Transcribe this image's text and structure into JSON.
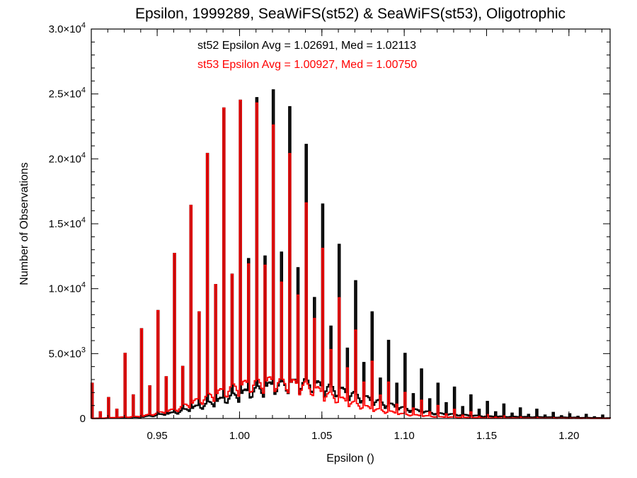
{
  "chart_data": {
    "type": "histogram",
    "title": "Epsilon, 1999289, SeaWiFS(st52) & SeaWiFS(st53), Oligotrophic",
    "xlabel": "Epsilon ()",
    "ylabel": "Number of Observations",
    "xlim": [
      0.91,
      1.225
    ],
    "ylim": [
      0,
      30000
    ],
    "x_ticks": [
      {
        "value": 0.95,
        "label": "0.95"
      },
      {
        "value": 1.0,
        "label": "1.00"
      },
      {
        "value": 1.05,
        "label": "1.05"
      },
      {
        "value": 1.1,
        "label": "1.10"
      },
      {
        "value": 1.15,
        "label": "1.15"
      },
      {
        "value": 1.2,
        "label": "1.20"
      }
    ],
    "y_ticks": [
      {
        "value": 0,
        "mant": "0",
        "exp": ""
      },
      {
        "value": 5000,
        "mant": "5.0×10",
        "exp": "3"
      },
      {
        "value": 10000,
        "mant": "1.0×10",
        "exp": "4"
      },
      {
        "value": 15000,
        "mant": "1.5×10",
        "exp": "4"
      },
      {
        "value": 20000,
        "mant": "2.0×10",
        "exp": "4"
      },
      {
        "value": 25000,
        "mant": "2.5×10",
        "exp": "4"
      },
      {
        "value": 30000,
        "mant": "3.0×10",
        "exp": "4"
      }
    ],
    "annotations": [
      {
        "text": "st52 Epsilon Avg = 1.02691, Med = 1.02113",
        "color": "#000000"
      },
      {
        "text": "st53 Epsilon Avg = 1.00927, Med = 1.00750",
        "color": "#ff0000"
      }
    ],
    "bin_width": 0.001,
    "series": [
      {
        "id": "st52",
        "color": "#000000",
        "spikes": [
          [
            0.91,
            2700
          ],
          [
            0.915,
            500
          ],
          [
            0.92,
            1600
          ],
          [
            0.925,
            700
          ],
          [
            0.93,
            5000
          ],
          [
            0.935,
            1800
          ],
          [
            0.94,
            6900
          ],
          [
            0.945,
            2500
          ],
          [
            0.95,
            8300
          ],
          [
            0.955,
            3200
          ],
          [
            0.96,
            12700
          ],
          [
            0.965,
            4000
          ],
          [
            0.97,
            16400
          ],
          [
            0.975,
            8200
          ],
          [
            0.98,
            20400
          ],
          [
            0.985,
            10300
          ],
          [
            0.99,
            23900
          ],
          [
            0.995,
            11100
          ],
          [
            1.0,
            24500
          ],
          [
            1.005,
            12300
          ],
          [
            1.01,
            24700
          ],
          [
            1.015,
            12500
          ],
          [
            1.02,
            25300
          ],
          [
            1.025,
            12800
          ],
          [
            1.03,
            24000
          ],
          [
            1.035,
            11600
          ],
          [
            1.04,
            21100
          ],
          [
            1.045,
            9300
          ],
          [
            1.05,
            16500
          ],
          [
            1.055,
            7100
          ],
          [
            1.06,
            13400
          ],
          [
            1.065,
            5400
          ],
          [
            1.07,
            10600
          ],
          [
            1.075,
            4300
          ],
          [
            1.08,
            8200
          ],
          [
            1.085,
            3100
          ],
          [
            1.09,
            6000
          ],
          [
            1.095,
            2700
          ],
          [
            1.1,
            5000
          ],
          [
            1.105,
            1900
          ],
          [
            1.11,
            3800
          ],
          [
            1.115,
            1500
          ],
          [
            1.12,
            2700
          ],
          [
            1.125,
            1200
          ],
          [
            1.13,
            2400
          ],
          [
            1.135,
            900
          ],
          [
            1.14,
            1800
          ],
          [
            1.145,
            700
          ],
          [
            1.15,
            1300
          ],
          [
            1.155,
            500
          ],
          [
            1.16,
            1100
          ],
          [
            1.165,
            400
          ],
          [
            1.17,
            800
          ],
          [
            1.175,
            300
          ],
          [
            1.18,
            700
          ],
          [
            1.185,
            250
          ],
          [
            1.19,
            450
          ],
          [
            1.195,
            200
          ],
          [
            1.2,
            350
          ],
          [
            1.205,
            150
          ],
          [
            1.21,
            300
          ],
          [
            1.215,
            120
          ],
          [
            1.22,
            250
          ]
        ],
        "baseline": [
          [
            0.91,
            0
          ],
          [
            0.94,
            100
          ],
          [
            0.96,
            400
          ],
          [
            0.98,
            1000
          ],
          [
            1.0,
            1700
          ],
          [
            1.02,
            2300
          ],
          [
            1.04,
            2500
          ],
          [
            1.06,
            2000
          ],
          [
            1.08,
            1300
          ],
          [
            1.1,
            700
          ],
          [
            1.12,
            350
          ],
          [
            1.15,
            150
          ],
          [
            1.225,
            30
          ]
        ]
      },
      {
        "id": "st53",
        "color": "#ff0000",
        "spikes": [
          [
            0.91,
            2700
          ],
          [
            0.915,
            500
          ],
          [
            0.92,
            1600
          ],
          [
            0.925,
            700
          ],
          [
            0.93,
            5000
          ],
          [
            0.935,
            1800
          ],
          [
            0.94,
            6900
          ],
          [
            0.945,
            2500
          ],
          [
            0.95,
            8300
          ],
          [
            0.955,
            3200
          ],
          [
            0.96,
            12700
          ],
          [
            0.965,
            4000
          ],
          [
            0.97,
            16400
          ],
          [
            0.975,
            8200
          ],
          [
            0.98,
            20400
          ],
          [
            0.985,
            10300
          ],
          [
            0.99,
            23900
          ],
          [
            0.995,
            11100
          ],
          [
            1.0,
            24500
          ],
          [
            1.005,
            11900
          ],
          [
            1.01,
            24300
          ],
          [
            1.015,
            11800
          ],
          [
            1.02,
            22600
          ],
          [
            1.025,
            10500
          ],
          [
            1.03,
            20400
          ],
          [
            1.035,
            9500
          ],
          [
            1.04,
            16600
          ],
          [
            1.045,
            7700
          ],
          [
            1.05,
            13100
          ],
          [
            1.055,
            5300
          ],
          [
            1.06,
            9300
          ],
          [
            1.065,
            3900
          ],
          [
            1.07,
            6800
          ],
          [
            1.075,
            2800
          ],
          [
            1.08,
            4400
          ],
          [
            1.085,
            1800
          ],
          [
            1.09,
            2800
          ],
          [
            1.095,
            1100
          ],
          [
            1.1,
            2000
          ],
          [
            1.105,
            800
          ],
          [
            1.11,
            1400
          ],
          [
            1.115,
            500
          ],
          [
            1.12,
            1000
          ],
          [
            1.125,
            350
          ],
          [
            1.13,
            700
          ],
          [
            1.135,
            250
          ],
          [
            1.14,
            500
          ],
          [
            1.145,
            150
          ],
          [
            1.15,
            300
          ],
          [
            1.155,
            100
          ],
          [
            1.16,
            200
          ],
          [
            1.17,
            120
          ],
          [
            1.18,
            80
          ],
          [
            1.19,
            50
          ],
          [
            1.2,
            30
          ],
          [
            1.21,
            20
          ],
          [
            1.22,
            10
          ]
        ],
        "baseline": [
          [
            0.91,
            0
          ],
          [
            0.94,
            150
          ],
          [
            0.96,
            600
          ],
          [
            0.98,
            1500
          ],
          [
            1.0,
            2300
          ],
          [
            1.02,
            2600
          ],
          [
            1.04,
            2300
          ],
          [
            1.06,
            1400
          ],
          [
            1.08,
            700
          ],
          [
            1.1,
            300
          ],
          [
            1.12,
            120
          ],
          [
            1.15,
            40
          ],
          [
            1.225,
            5
          ]
        ]
      }
    ]
  }
}
